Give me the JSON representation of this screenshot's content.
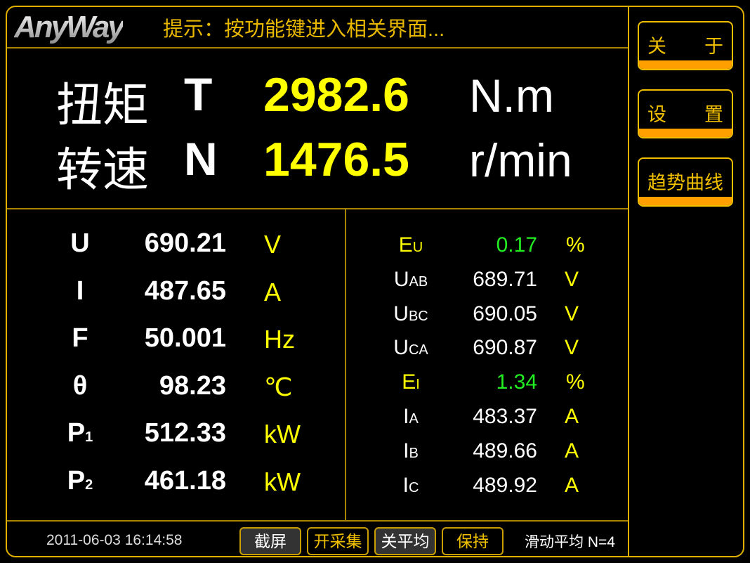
{
  "header": {
    "logo": "AnyWay",
    "hint": "提示：按功能键进入相关界面..."
  },
  "main": [
    {
      "label": "扭矩",
      "symbol": "T",
      "value": "2982.6",
      "unit": "N.m"
    },
    {
      "label": "转速",
      "symbol": "N",
      "value": "1476.5",
      "unit": "r/min"
    }
  ],
  "left": [
    {
      "symbol": "U",
      "sub": "",
      "value": "690.21",
      "unit": "V"
    },
    {
      "symbol": "I",
      "sub": "",
      "value": "487.65",
      "unit": "A"
    },
    {
      "symbol": "F",
      "sub": "",
      "value": "50.001",
      "unit": "Hz"
    },
    {
      "symbol": "θ",
      "sub": "",
      "value": "98.23",
      "unit": "℃"
    },
    {
      "symbol": "P",
      "sub": "1",
      "value": "512.33",
      "unit": "kW"
    },
    {
      "symbol": "P",
      "sub": "2",
      "value": "461.18",
      "unit": "kW"
    }
  ],
  "right": [
    {
      "symbol": "E",
      "sub": "U",
      "value": "0.17",
      "unit": "%",
      "highlight": true
    },
    {
      "symbol": "U",
      "sub": "AB",
      "value": "689.71",
      "unit": "V"
    },
    {
      "symbol": "U",
      "sub": "BC",
      "value": "690.05",
      "unit": "V"
    },
    {
      "symbol": "U",
      "sub": "CA",
      "value": "690.87",
      "unit": "V"
    },
    {
      "symbol": "E",
      "sub": "I",
      "value": "1.34",
      "unit": "%",
      "highlight": true
    },
    {
      "symbol": "I",
      "sub": "A",
      "value": "483.37",
      "unit": "A"
    },
    {
      "symbol": "I",
      "sub": "B",
      "value": "489.66",
      "unit": "A"
    },
    {
      "symbol": "I",
      "sub": "C",
      "value": "489.92",
      "unit": "A"
    }
  ],
  "side": [
    {
      "a": "关",
      "b": "于"
    },
    {
      "a": "设",
      "b": "置"
    },
    {
      "a": "趋势曲线",
      "b": ""
    }
  ],
  "footer": {
    "datetime": "2011-06-03 16:14:58",
    "buttons": [
      "截屏",
      "开采集",
      "关平均",
      "保持"
    ],
    "status": "滑动平均 N=4"
  },
  "colors": {
    "border": "#e0b000",
    "value": "#ffff00",
    "percent": "#22ee22",
    "accent": "#ff9f00"
  }
}
